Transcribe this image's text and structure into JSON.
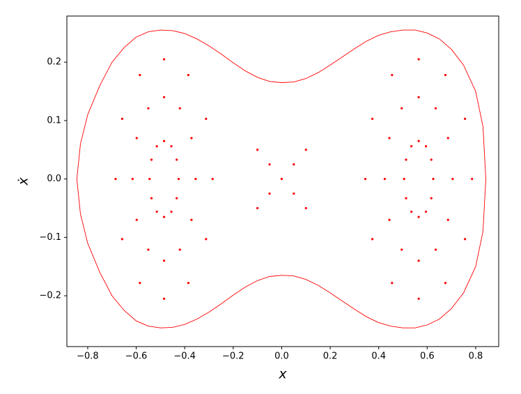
{
  "chart_data": {
    "type": "scatter",
    "x_label": "x",
    "y_label": "ẋ",
    "xlim": [
      -0.886,
      0.895
    ],
    "ylim": [
      -0.287,
      0.279
    ],
    "xticks": [
      {
        "value": -0.8,
        "label": "−0.8"
      },
      {
        "value": -0.6,
        "label": "−0.6"
      },
      {
        "value": -0.4,
        "label": "−0.4"
      },
      {
        "value": -0.2,
        "label": "−0.2"
      },
      {
        "value": 0,
        "label": "0.0"
      },
      0.2,
      0.4,
      0.6,
      0.8
    ],
    "yticks": [
      {
        "value": -0.2,
        "label": "−0.2"
      },
      {
        "value": -0.1,
        "label": "−0.1"
      },
      {
        "value": 0,
        "label": "0.0"
      },
      0.1,
      0.2
    ],
    "grid": false,
    "series": [
      {
        "color": "#ff0000",
        "mode": "line",
        "x": [
          -0.845,
          -0.83,
          -0.8,
          -0.75,
          -0.7,
          -0.65,
          -0.6,
          -0.55,
          -0.5,
          -0.45,
          -0.4,
          -0.35,
          -0.3,
          -0.25,
          -0.2,
          -0.15,
          -0.1,
          -0.05,
          0,
          0.05,
          0.1,
          0.15,
          0.2,
          0.25,
          0.3,
          0.35,
          0.4,
          0.45,
          0.5,
          0.55,
          0.6,
          0.65,
          0.7,
          0.75,
          0.8,
          0.83,
          0.842,
          0.83,
          0.8,
          0.75,
          0.7,
          0.65,
          0.6,
          0.55,
          0.5,
          0.45,
          0.4,
          0.35,
          0.3,
          0.25,
          0.2,
          0.15,
          0.1,
          0.05,
          0,
          -0.05,
          -0.1,
          -0.15,
          -0.2,
          -0.25,
          -0.3,
          -0.35,
          -0.4,
          -0.45,
          -0.5,
          -0.55,
          -0.6,
          -0.65,
          -0.7,
          -0.75,
          -0.8,
          -0.83,
          -0.845
        ],
        "values": [
          0,
          0.06,
          0.11,
          0.16,
          0.2,
          0.225,
          0.243,
          0.252,
          0.255,
          0.254,
          0.249,
          0.24,
          0.228,
          0.214,
          0.199,
          0.185,
          0.174,
          0.167,
          0.165,
          0.166,
          0.172,
          0.182,
          0.195,
          0.209,
          0.223,
          0.236,
          0.246,
          0.252,
          0.255,
          0.255,
          0.25,
          0.24,
          0.222,
          0.195,
          0.15,
          0.09,
          0,
          -0.09,
          -0.15,
          -0.195,
          -0.222,
          -0.24,
          -0.25,
          -0.255,
          -0.255,
          -0.252,
          -0.246,
          -0.236,
          -0.223,
          -0.209,
          -0.195,
          -0.182,
          -0.172,
          -0.166,
          -0.165,
          -0.167,
          -0.174,
          -0.185,
          -0.199,
          -0.214,
          -0.228,
          -0.24,
          -0.249,
          -0.254,
          -0.255,
          -0.252,
          -0.243,
          -0.225,
          -0.2,
          -0.16,
          -0.11,
          -0.06,
          0
        ]
      },
      {
        "color": "#ff0000",
        "mode": "markers",
        "x": [
          -0.285,
          -0.312,
          -0.385,
          -0.485,
          -0.585,
          -0.658,
          -0.685,
          -0.658,
          -0.585,
          -0.485,
          -0.385,
          -0.312
        ],
        "values": [
          0,
          0.103,
          0.178,
          0.205,
          0.178,
          0.103,
          0,
          -0.103,
          -0.178,
          -0.205,
          -0.178,
          -0.103
        ]
      },
      {
        "color": "#ff0000",
        "mode": "markers",
        "x": [
          -0.355,
          -0.372,
          -0.42,
          -0.485,
          -0.55,
          -0.598,
          -0.615,
          -0.598,
          -0.55,
          -0.485,
          -0.42,
          -0.372
        ],
        "values": [
          0,
          0.07,
          0.121,
          0.14,
          0.121,
          0.07,
          0,
          -0.07,
          -0.121,
          -0.14,
          -0.121,
          -0.07
        ]
      },
      {
        "color": "#ff0000",
        "mode": "markers",
        "x": [
          -0.425,
          -0.433,
          -0.455,
          -0.485,
          -0.515,
          -0.537,
          -0.545,
          -0.537,
          -0.515,
          -0.485,
          -0.455,
          -0.433
        ],
        "values": [
          0,
          0.033,
          0.056,
          0.065,
          0.056,
          0.033,
          0,
          -0.033,
          -0.056,
          -0.065,
          -0.056,
          -0.033
        ]
      },
      {
        "color": "#ff0000",
        "mode": "markers",
        "x": [
          0.785,
          0.756,
          0.675,
          0.565,
          0.455,
          0.374,
          0.345,
          0.374,
          0.455,
          0.565,
          0.675,
          0.756
        ],
        "values": [
          0,
          0.103,
          0.178,
          0.205,
          0.178,
          0.103,
          0,
          -0.103,
          -0.178,
          -0.205,
          -0.178,
          -0.103
        ]
      },
      {
        "color": "#ff0000",
        "mode": "markers",
        "x": [
          0.705,
          0.686,
          0.635,
          0.565,
          0.495,
          0.444,
          0.425,
          0.444,
          0.495,
          0.565,
          0.635,
          0.686
        ],
        "values": [
          0,
          0.07,
          0.121,
          0.14,
          0.121,
          0.07,
          0,
          -0.07,
          -0.121,
          -0.14,
          -0.121,
          -0.07
        ]
      },
      {
        "color": "#ff0000",
        "mode": "markers",
        "x": [
          0.625,
          0.617,
          0.595,
          0.565,
          0.535,
          0.513,
          0.505,
          0.513,
          0.535,
          0.565,
          0.595,
          0.617
        ],
        "values": [
          0,
          0.033,
          0.056,
          0.065,
          0.056,
          0.033,
          0,
          -0.033,
          -0.056,
          -0.065,
          -0.056,
          -0.033
        ]
      },
      {
        "color": "#ff0000",
        "mode": "markers",
        "x": [
          -0.1,
          -0.1,
          -0.05,
          -0.05,
          0,
          0.05,
          0.05,
          0.1,
          0.1
        ],
        "values": [
          0.05,
          -0.05,
          0.025,
          -0.025,
          0,
          0.025,
          -0.025,
          0.05,
          -0.05
        ]
      }
    ]
  }
}
